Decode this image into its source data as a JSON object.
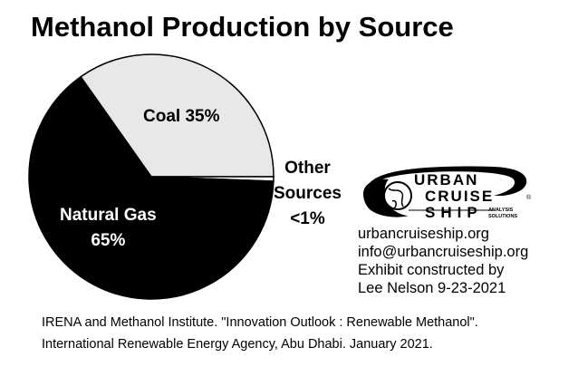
{
  "title": "Methanol Production by Source",
  "chart_data": {
    "type": "pie",
    "title": "Methanol Production by Source",
    "slices": [
      {
        "name": "Coal",
        "value": 35,
        "label": "Coal 35%",
        "color": "#e8e8e8"
      },
      {
        "name": "Natural Gas",
        "value": 65,
        "label_line1": "Natural Gas",
        "label_line2": "65%",
        "color": "#000000"
      },
      {
        "name": "Other Sources",
        "value": 0.6,
        "label_line1": "Other",
        "label_line2": "Sources",
        "label_line3": "<1%",
        "color": "#ffffff"
      }
    ]
  },
  "logo": {
    "line1": "URBAN",
    "line2": "CRUISE",
    "line3": "SHIP",
    "tag1": "ANALYSIS",
    "tag2": "SOLUTIONS",
    "registered": "®"
  },
  "contact": {
    "website": "urbancruiseship.org",
    "email": "info@urbancruiseship.org",
    "credit": "Exhibit constructed by",
    "author_date": "Lee Nelson 9-23-2021"
  },
  "citation": {
    "line1": "IRENA and Methanol Institute. \"Innovation Outlook : Renewable Methanol\".",
    "line2": "International Renewable Energy Agency, Abu Dhabi. January 2021."
  }
}
